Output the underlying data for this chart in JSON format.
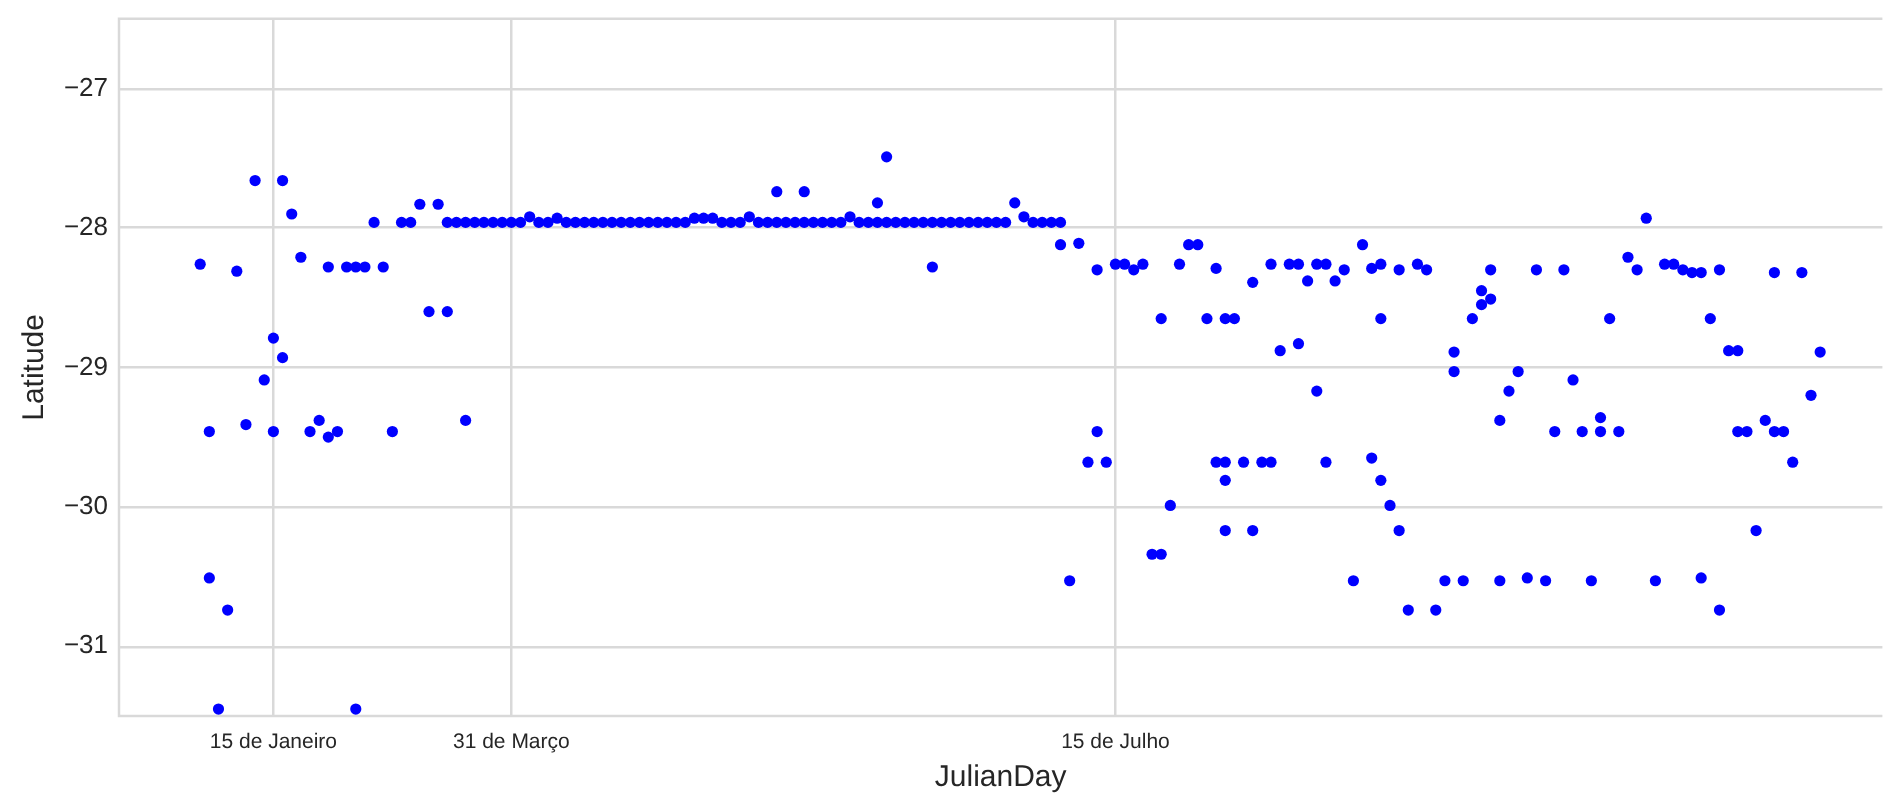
{
  "chart_data": {
    "type": "scatter",
    "xlabel": "JulianDay",
    "ylabel": "Latitude",
    "marker": "circle",
    "grid": true,
    "legend": false,
    "ylim": [
      -31.5,
      -26.5
    ],
    "yticks": [
      {
        "value": -27,
        "label": "−27"
      },
      {
        "value": -28,
        "label": "−28"
      },
      {
        "value": -29,
        "label": "−29"
      },
      {
        "value": -30,
        "label": "−30"
      },
      {
        "value": -31,
        "label": "−31"
      }
    ],
    "categories": [
      null,
      null,
      null,
      null,
      null,
      null,
      null,
      null,
      "15 de Janeiro",
      null,
      null,
      null,
      null,
      null,
      null,
      null,
      null,
      null,
      null,
      null,
      null,
      null,
      null,
      null,
      null,
      null,
      null,
      null,
      null,
      null,
      null,
      null,
      null,
      null,
      "31 de Março",
      null,
      null,
      null,
      null,
      null,
      null,
      null,
      null,
      null,
      null,
      null,
      null,
      null,
      null,
      null,
      null,
      null,
      null,
      null,
      null,
      null,
      null,
      null,
      null,
      null,
      null,
      null,
      null,
      null,
      null,
      null,
      null,
      null,
      null,
      null,
      null,
      null,
      null,
      null,
      null,
      null,
      null,
      null,
      null,
      null,
      null,
      null,
      null,
      null,
      null,
      null,
      null,
      null,
      null,
      null,
      null,
      null,
      null,
      null,
      null,
      null,
      null,
      null,
      null,
      null,
      "15 de Julho",
      null,
      null,
      null,
      null,
      null,
      null,
      null,
      null,
      null,
      null,
      null,
      null,
      null,
      null,
      null,
      null,
      null,
      null,
      null,
      null,
      null,
      null,
      null,
      null,
      null,
      null,
      null,
      null,
      null,
      null,
      null,
      null,
      null,
      null,
      null,
      null,
      null,
      null,
      null,
      null,
      null,
      null,
      null,
      null,
      null,
      null,
      null,
      null,
      null,
      null,
      null,
      null,
      null,
      null,
      null,
      null,
      null,
      null,
      null,
      null,
      null,
      null,
      null,
      null,
      null,
      null,
      null,
      null,
      null,
      null,
      null,
      null,
      null,
      null,
      null,
      null,
      null
    ],
    "series": [
      {
        "color": "#0000ff",
        "values": [
          -28.26,
          -29.46,
          -31.45,
          -30.74,
          -28.31,
          -29.41,
          -27.66,
          -29.09,
          -28.79,
          -27.66,
          -27.9,
          -28.21,
          -29.46,
          -29.38,
          -28.28,
          -29.46,
          -28.28,
          -28.28,
          -28.28,
          -27.96,
          -28.28,
          -29.46,
          -27.96,
          -27.96,
          -27.83,
          -28.6,
          -27.83,
          -27.96,
          -27.96,
          -27.96,
          -27.96,
          -27.96,
          -27.96,
          -27.96,
          -27.96,
          -27.96,
          -27.92,
          -27.96,
          -27.96,
          -27.93,
          -27.96,
          -27.96,
          -27.96,
          -27.96,
          -27.96,
          -27.96,
          -27.96,
          -27.96,
          -27.96,
          -27.96,
          -27.96,
          -27.96,
          -27.96,
          -27.96,
          -27.93,
          -27.93,
          -27.93,
          -27.96,
          -27.96,
          -27.96,
          -27.92,
          -27.96,
          -27.96,
          -27.96,
          -27.96,
          -27.96,
          -27.96,
          -27.96,
          -27.96,
          -27.96,
          -27.96,
          -27.92,
          -27.96,
          -27.96,
          -27.96,
          -27.96,
          -27.96,
          -27.96,
          -27.96,
          -27.96,
          -27.96,
          -27.96,
          -27.96,
          -27.96,
          -27.96,
          -27.96,
          -27.96,
          -27.96,
          -27.96,
          -27.82,
          -27.92,
          -27.96,
          -27.96,
          -27.96,
          -27.96,
          -30.53,
          -28.11,
          -29.68,
          -28.3,
          -29.68,
          -28.26,
          -28.26,
          -28.3,
          -28.26,
          -30.34,
          -30.34,
          -29.99,
          -28.26,
          -28.12,
          -28.12,
          -28.65,
          -28.29,
          -28.65,
          -28.65,
          -29.68,
          -28.39,
          -29.68,
          -29.68,
          -28.88,
          -28.26,
          -28.26,
          -28.38,
          -28.26,
          -28.26,
          -28.38,
          -28.3,
          -30.53,
          -28.12,
          -28.29,
          -28.26,
          -29.99,
          -28.3,
          -30.74,
          -28.26,
          -28.3,
          -30.74,
          -30.53,
          -28.89,
          -30.53,
          -28.65,
          -28.55,
          -28.51,
          -29.38,
          -29.17,
          -29.03,
          -30.51,
          -28.3,
          -30.53,
          -29.46,
          -28.3,
          -29.09,
          -29.46,
          -30.53,
          -29.36,
          -28.65,
          -29.46,
          -28.21,
          -28.3,
          -27.93,
          -30.53,
          -28.26,
          -28.26,
          -28.3,
          -28.32,
          -28.32,
          -28.65,
          -28.3,
          -28.88,
          -28.88,
          -29.46,
          -30.17,
          -29.38,
          -28.32,
          -29.46,
          -29.68,
          -28.32,
          -29.2,
          -28.89
        ]
      },
      {
        "color": "#0000ff",
        "values": [
          null,
          -30.51,
          null,
          null,
          null,
          null,
          null,
          null,
          -29.46,
          -28.93,
          null,
          null,
          null,
          null,
          -29.5,
          null,
          null,
          -31.45,
          null,
          null,
          null,
          null,
          null,
          null,
          null,
          null,
          null,
          -28.6,
          null,
          -29.38,
          null,
          null,
          null,
          null,
          null,
          null,
          null,
          null,
          null,
          null,
          null,
          null,
          null,
          null,
          null,
          null,
          null,
          null,
          null,
          null,
          null,
          null,
          null,
          null,
          null,
          null,
          null,
          null,
          null,
          null,
          null,
          null,
          null,
          -27.74,
          null,
          null,
          -27.74,
          null,
          null,
          null,
          null,
          null,
          null,
          null,
          -27.82,
          -27.49,
          null,
          null,
          null,
          null,
          -28.28,
          null,
          null,
          null,
          null,
          null,
          null,
          null,
          null,
          null,
          null,
          null,
          null,
          null,
          -28.12,
          null,
          null,
          null,
          -29.46,
          null,
          null,
          null,
          null,
          null,
          null,
          -28.65,
          null,
          null,
          null,
          null,
          null,
          -29.68,
          -29.68,
          null,
          null,
          -30.17,
          null,
          -28.26,
          null,
          null,
          -28.83,
          null,
          -29.17,
          -29.68,
          null,
          null,
          null,
          null,
          -29.65,
          -28.65,
          null,
          -30.17,
          null,
          null,
          null,
          null,
          null,
          -29.03,
          null,
          null,
          -28.45,
          -28.3,
          -30.53,
          null,
          null,
          null,
          null,
          null,
          null,
          null,
          null,
          null,
          null,
          -29.46,
          null,
          null,
          null,
          null,
          null,
          null,
          null,
          null,
          null,
          null,
          -30.51,
          null,
          -30.74,
          null,
          -29.46,
          null,
          null,
          null,
          -29.46,
          null,
          null,
          null,
          null,
          null
        ]
      },
      {
        "color": "#0000ff",
        "values": [
          null,
          null,
          null,
          null,
          null,
          null,
          null,
          null,
          null,
          null,
          null,
          null,
          null,
          null,
          null,
          null,
          null,
          null,
          null,
          null,
          null,
          null,
          null,
          null,
          null,
          null,
          null,
          null,
          null,
          null,
          null,
          null,
          null,
          null,
          null,
          null,
          null,
          null,
          null,
          null,
          null,
          null,
          null,
          null,
          null,
          null,
          null,
          null,
          null,
          null,
          null,
          null,
          null,
          null,
          null,
          null,
          null,
          null,
          null,
          null,
          null,
          null,
          null,
          null,
          null,
          null,
          null,
          null,
          null,
          null,
          null,
          null,
          null,
          null,
          null,
          null,
          null,
          null,
          null,
          null,
          null,
          null,
          null,
          null,
          null,
          null,
          null,
          null,
          null,
          null,
          null,
          null,
          null,
          null,
          null,
          null,
          null,
          null,
          null,
          null,
          null,
          null,
          null,
          null,
          null,
          null,
          null,
          null,
          null,
          null,
          null,
          null,
          -29.81,
          null,
          null,
          null,
          null,
          null,
          null,
          null,
          null,
          null,
          null,
          null,
          null,
          null,
          null,
          null,
          null,
          -29.81,
          null,
          null,
          null,
          null,
          null,
          null,
          null,
          null,
          null,
          null,
          null,
          null,
          null,
          null,
          null,
          null,
          null,
          null,
          null,
          null,
          null,
          null,
          null,
          null,
          null,
          null,
          null,
          null,
          null,
          null,
          null,
          null,
          null,
          null,
          null,
          null,
          null,
          null,
          null,
          null,
          null,
          null,
          null,
          null,
          null,
          null,
          null,
          null
        ]
      },
      {
        "color": "#0000ff",
        "values": [
          null,
          null,
          null,
          null,
          null,
          null,
          null,
          null,
          null,
          null,
          null,
          null,
          null,
          null,
          null,
          null,
          null,
          null,
          null,
          null,
          null,
          null,
          null,
          null,
          null,
          null,
          null,
          null,
          null,
          null,
          null,
          null,
          null,
          null,
          null,
          null,
          null,
          null,
          null,
          null,
          null,
          null,
          null,
          null,
          null,
          null,
          null,
          null,
          null,
          null,
          null,
          null,
          null,
          null,
          null,
          null,
          null,
          null,
          null,
          null,
          null,
          null,
          null,
          null,
          null,
          null,
          null,
          null,
          null,
          null,
          null,
          null,
          null,
          null,
          null,
          null,
          null,
          null,
          null,
          null,
          null,
          null,
          null,
          null,
          null,
          null,
          null,
          null,
          null,
          null,
          null,
          null,
          null,
          null,
          null,
          null,
          null,
          null,
          null,
          null,
          null,
          null,
          null,
          null,
          null,
          null,
          null,
          null,
          null,
          null,
          null,
          null,
          -30.17,
          null,
          null,
          null,
          null,
          null,
          null,
          null,
          null,
          null,
          null,
          null,
          null,
          null,
          null,
          null,
          null,
          null,
          null,
          null,
          null,
          null,
          null,
          null,
          null,
          null,
          null,
          null,
          null,
          null,
          null,
          null,
          null,
          null,
          null,
          null,
          null,
          null,
          null,
          null,
          null,
          null,
          null,
          null,
          null,
          null,
          null,
          null,
          null,
          null,
          null,
          null,
          null,
          null,
          null,
          null,
          null,
          null,
          null,
          null,
          null,
          null,
          null,
          null,
          null,
          null
        ]
      }
    ]
  }
}
